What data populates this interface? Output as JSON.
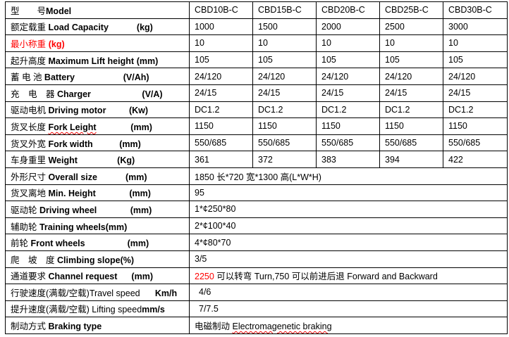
{
  "header": {
    "label_cn": "型　　号",
    "label_en": "Model",
    "models": [
      "CBD10B-C",
      "CBD15B-C",
      "CBD20B-C",
      "CBD25B-C",
      "CBD30B-C"
    ]
  },
  "rows": [
    {
      "cn": "额定载重 ",
      "en": "Load Capacity",
      "unit": "(kg)",
      "values": [
        "1000",
        "1500",
        "2000",
        "2500",
        "3000"
      ]
    },
    {
      "cn": "最小称重",
      "en": "",
      "unit": "(kg)",
      "values": [
        "10",
        "10",
        "10",
        "10",
        "10"
      ]
    },
    {
      "cn": "起升高度 ",
      "en": "Maximum Lift height",
      "unit": "(mm)",
      "values": [
        "105",
        "105",
        "105",
        "105",
        "105"
      ]
    },
    {
      "cn": "蓄 电 池 ",
      "en": "Battery",
      "unit": "(V/Ah)",
      "values": [
        "24/120",
        "24/120",
        "24/120",
        "24/120",
        "24/120"
      ]
    },
    {
      "cn": "充　电　器 ",
      "en": "Charger",
      "unit": "(V/A)",
      "values": [
        "24/15",
        "24/15",
        "24/15",
        "24/15",
        "24/15"
      ]
    },
    {
      "cn": "驱动电机 ",
      "en": "Driving motor",
      "unit": "(Kw)",
      "values": [
        "DC1.2",
        "DC1.2",
        "DC1.2",
        "DC1.2",
        "DC1.2"
      ]
    },
    {
      "cn": "货叉长度 ",
      "en": "Fork Leight",
      "unit": "(mm)",
      "values": [
        "1150",
        "1150",
        "1150",
        "1150",
        "1150"
      ]
    },
    {
      "cn": "货叉外宽 ",
      "en": "Fork width",
      "unit": "(mm)",
      "values": [
        "550/685",
        "550/685",
        "550/685",
        "550/685",
        "550/685"
      ]
    },
    {
      "cn": "车身重里 ",
      "en": "Weight",
      "unit": "(Kg)",
      "values": [
        "361",
        "372",
        "383",
        "394",
        "422"
      ]
    },
    {
      "cn": "外形尺寸 ",
      "en": "Overall size",
      "unit": "(mm)",
      "value": "1850 长*720 宽*1300 高(L*W*H)"
    },
    {
      "cn": "货叉离地 ",
      "en": "Min. Height",
      "unit": "(mm)",
      "value": "95"
    },
    {
      "cn": "驱动轮 ",
      "en": "Driving wheel",
      "unit": "(mm)",
      "value": "1*¢250*80"
    },
    {
      "cn": "辅助轮 ",
      "en": "Training wheels",
      "unit": "(mm)",
      "value": "2*¢100*40"
    },
    {
      "cn": "前轮 ",
      "en": "Front wheels",
      "unit": "(mm)",
      "value": "4*¢80*70"
    },
    {
      "cn": "爬　坡　度 ",
      "en": "Climbing slope",
      "unit": "(%)",
      "value": "3/5"
    },
    {
      "cn": "通道要求 ",
      "en": "Channel request",
      "unit": "(mm)",
      "value_red": "2250",
      "value": " 可以转弯 Turn,750 可以前进后退 Forward and Backward"
    },
    {
      "cn": "行驶速度(满载/空载)",
      "en": "Travel speed",
      "unit": "Km/h",
      "value": "4/6"
    },
    {
      "cn": "提升速度(满载/空载) ",
      "en": "Lifting speed",
      "unit": "mm/s",
      "value": "7/7.5"
    },
    {
      "cn": "制动方式 ",
      "en": "Braking type",
      "unit": "",
      "value_cn": "电磁制动 ",
      "value": "Electromagenetic braking"
    }
  ],
  "colors": {
    "text": "#000000",
    "highlight": "#ff0000"
  }
}
